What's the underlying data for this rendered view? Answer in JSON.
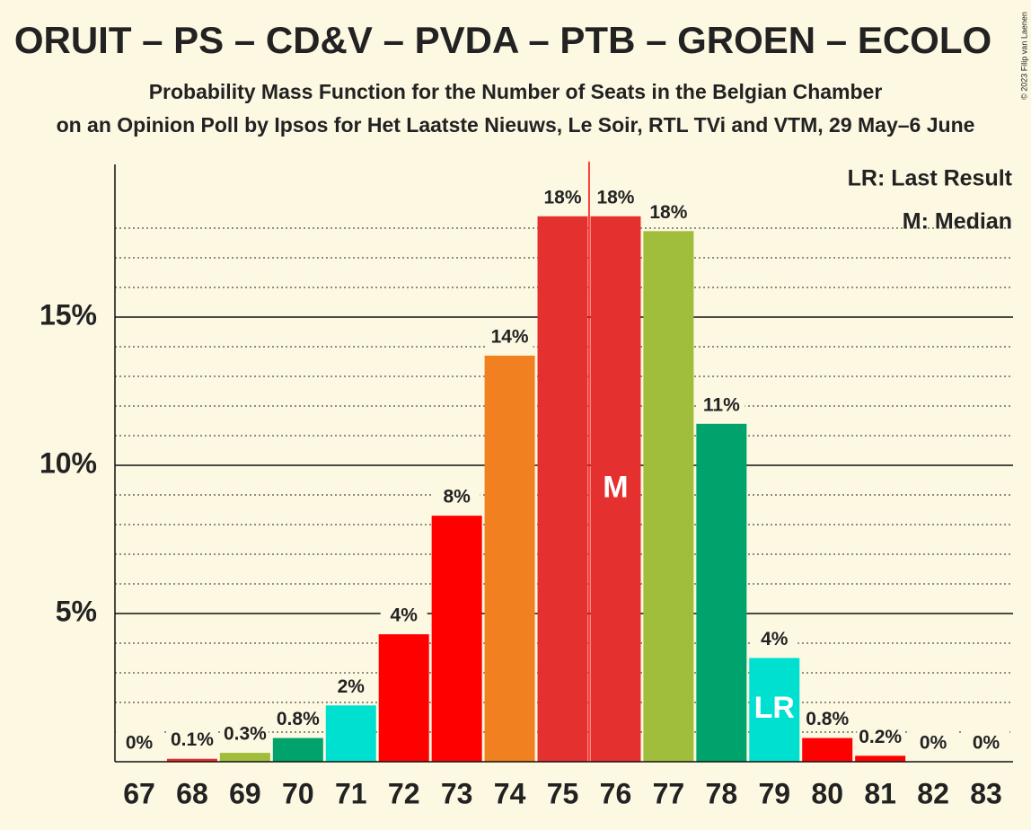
{
  "chart_data": {
    "type": "bar",
    "title": "ORUIT – PS – CD&V – PVDA – PTB – GROEN – ECOLO",
    "subtitle": "Probability Mass Function for the Number of Seats in the Belgian Chamber",
    "subtitle2": "on an Opinion Poll by Ipsos for Het Laatste Nieuws, Le Soir, RTL TVi and VTM, 29 May–6 June",
    "copyright": "© 2023 Filip van Laenen",
    "categories": [
      "67",
      "68",
      "69",
      "70",
      "71",
      "72",
      "73",
      "74",
      "75",
      "76",
      "77",
      "78",
      "79",
      "80",
      "81",
      "82",
      "83"
    ],
    "values": [
      0,
      0.1,
      0.3,
      0.8,
      1.9,
      4.3,
      8.3,
      13.7,
      18.4,
      18.4,
      17.9,
      11.4,
      3.5,
      0.8,
      0.2,
      0,
      0
    ],
    "value_labels": [
      "0%",
      "0.1%",
      "0.3%",
      "0.8%",
      "2%",
      "4%",
      "8%",
      "14%",
      "18%",
      "18%",
      "18%",
      "11%",
      "4%",
      "0.8%",
      "0.2%",
      "0%",
      "0%"
    ],
    "colors": [
      "#e53030",
      "#e53030",
      "#a0be3c",
      "#00a36c",
      "#00e0d0",
      "#ff0000",
      "#ff0000",
      "#f08020",
      "#e53030",
      "#e53030",
      "#a0be3c",
      "#00a36c",
      "#00e0d0",
      "#ff0000",
      "#ff0000",
      "#e53030",
      "#e53030"
    ],
    "ylim": [
      0,
      20
    ],
    "yticks": [
      {
        "value": 5,
        "label": "5%"
      },
      {
        "value": 10,
        "label": "10%"
      },
      {
        "value": 15,
        "label": "15%"
      }
    ],
    "minor_yticks": [
      1,
      2,
      3,
      4,
      6,
      7,
      8,
      9,
      11,
      12,
      13,
      14,
      16,
      17,
      18
    ],
    "grid": true,
    "median": "76",
    "median_label": "M",
    "median_color": "#ff0000",
    "last_result": "79",
    "last_result_label": "LR",
    "legend": [
      "LR: Last Result",
      "M: Median"
    ]
  }
}
